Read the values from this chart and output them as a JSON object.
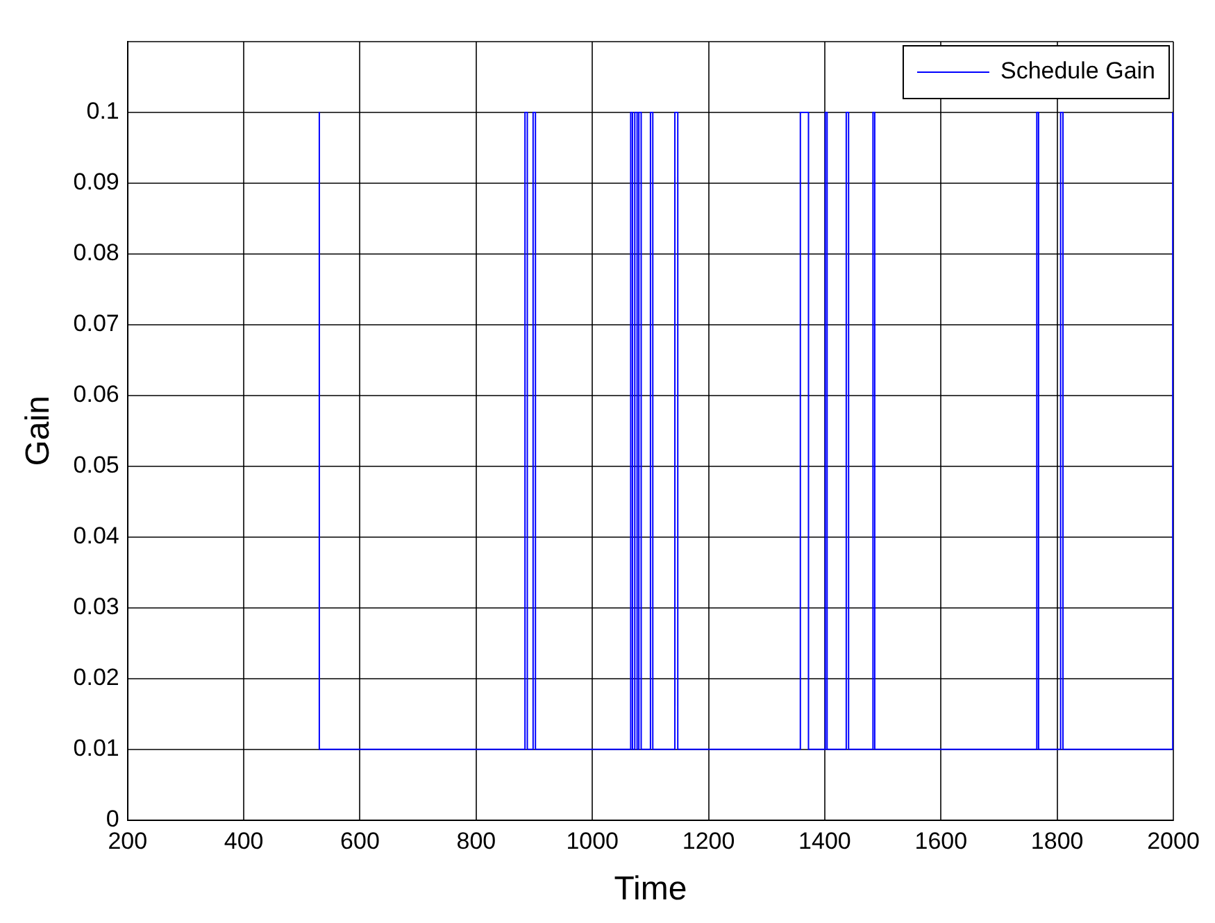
{
  "chart_data": {
    "type": "line",
    "xlabel": "Time",
    "ylabel": "Gain",
    "xlim": [
      200,
      2000
    ],
    "xticks": [
      200,
      400,
      600,
      800,
      1000,
      1200,
      1400,
      1600,
      1800,
      2000
    ],
    "ylim": [
      0,
      0.11
    ],
    "yticks": [
      0,
      0.01,
      0.02,
      0.03,
      0.04,
      0.05,
      0.06,
      0.07,
      0.08,
      0.09,
      0.1,
      {
        "value": 0.11,
        "label": null
      }
    ],
    "grid": true,
    "legend": "top right",
    "marker": "none",
    "line_style": "solid",
    "series": [
      {
        "name": "Schedule Gain",
        "color": "#0000ff",
        "x": [
          530,
          530,
          884,
          884,
          888,
          888,
          898,
          898,
          902,
          902,
          1066,
          1066,
          1069,
          1069,
          1073,
          1073,
          1077,
          1077,
          1080,
          1080,
          1084,
          1084,
          1100,
          1100,
          1104,
          1104,
          1142,
          1142,
          1147,
          1147,
          1358,
          1358,
          1372,
          1372,
          1401,
          1401,
          1404,
          1404,
          1437,
          1437,
          1441,
          1441,
          1483,
          1483,
          1486,
          1486,
          1765,
          1765,
          1768,
          1768,
          1806,
          1806,
          1810,
          1810,
          1999,
          1999
        ],
        "values": [
          0.1,
          0.01,
          0.01,
          0.1,
          0.1,
          0.01,
          0.01,
          0.1,
          0.1,
          0.01,
          0.01,
          0.1,
          0.1,
          0.01,
          0.01,
          0.1,
          0.1,
          0.01,
          0.01,
          0.1,
          0.1,
          0.01,
          0.01,
          0.1,
          0.1,
          0.01,
          0.01,
          0.1,
          0.1,
          0.01,
          0.01,
          0.1,
          0.1,
          0.01,
          0.01,
          0.1,
          0.1,
          0.01,
          0.01,
          0.1,
          0.1,
          0.01,
          0.01,
          0.1,
          0.1,
          0.01,
          0.01,
          0.1,
          0.1,
          0.01,
          0.01,
          0.1,
          0.1,
          0.01,
          0.01,
          0.1
        ]
      }
    ]
  }
}
